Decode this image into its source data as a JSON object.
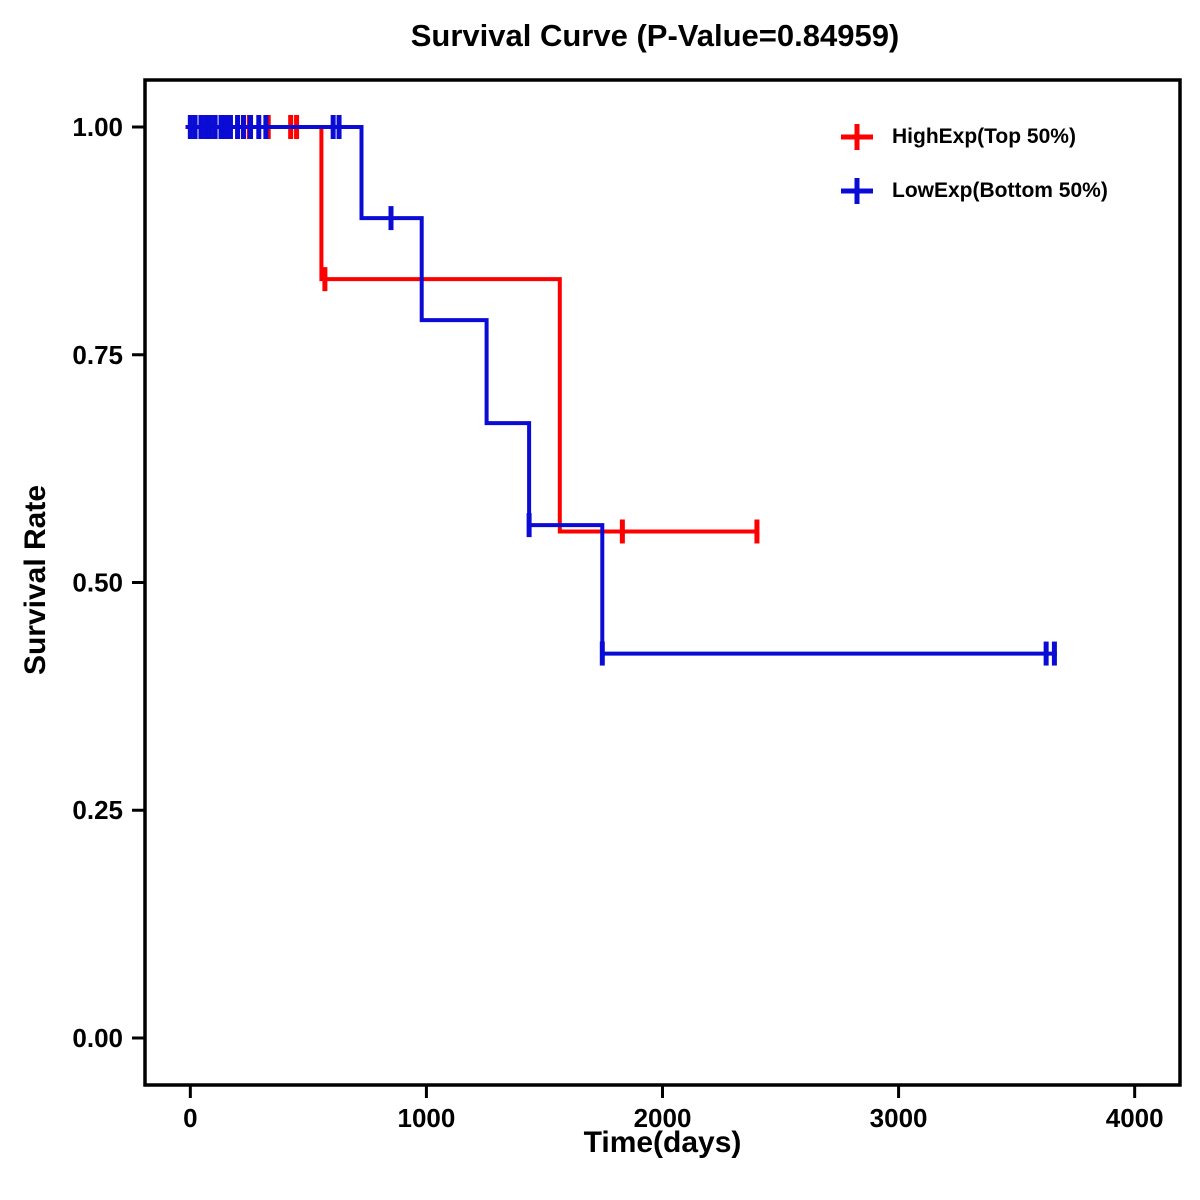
{
  "chart_data": {
    "type": "line",
    "subtype": "kaplan-meier-step",
    "title": "Survival Curve (P-Value=0.84959)",
    "p_value": "0.84959",
    "xlabel": "Time(days)",
    "ylabel": "Survival Rate",
    "xlim": [
      0,
      4000
    ],
    "ylim": [
      0,
      1
    ],
    "x_ticks": [
      0,
      1000,
      2000,
      3000,
      4000
    ],
    "x_tick_labels": [
      "0",
      "1000",
      "2000",
      "3000",
      "4000"
    ],
    "y_ticks": [
      0,
      0.25,
      0.5,
      0.75,
      1
    ],
    "y_tick_labels": [
      "0.00",
      "0.25",
      "0.50",
      "0.75",
      "1.00"
    ],
    "grid": false,
    "legend_position": "top-right",
    "series": [
      {
        "name": "HighExp(Top 50%)",
        "color": "#FF0000",
        "steps": [
          [
            -20,
            1.0
          ],
          [
            555,
            1.0
          ],
          [
            555,
            0.833
          ],
          [
            1565,
            0.833
          ],
          [
            1565,
            0.556
          ],
          [
            2400,
            0.556
          ]
        ],
        "censors": [
          [
            225,
            1.0
          ],
          [
            250,
            1.0
          ],
          [
            330,
            1.0
          ],
          [
            425,
            1.0
          ],
          [
            450,
            1.0
          ],
          [
            570,
            0.833
          ],
          [
            1830,
            0.556
          ],
          [
            2400,
            0.556
          ]
        ]
      },
      {
        "name": "LowExp(Bottom 50%)",
        "color": "#0B0BD6",
        "steps": [
          [
            -20,
            1.0
          ],
          [
            725,
            1.0
          ],
          [
            725,
            0.9
          ],
          [
            980,
            0.9
          ],
          [
            980,
            0.788
          ],
          [
            1255,
            0.788
          ],
          [
            1255,
            0.675
          ],
          [
            1435,
            0.675
          ],
          [
            1435,
            0.563
          ],
          [
            1745,
            0.563
          ],
          [
            1745,
            0.422
          ],
          [
            3670,
            0.422
          ]
        ],
        "censors": [
          [
            0,
            1.0
          ],
          [
            20,
            1.0
          ],
          [
            45,
            1.0
          ],
          [
            65,
            1.0
          ],
          [
            85,
            1.0
          ],
          [
            105,
            1.0
          ],
          [
            130,
            1.0
          ],
          [
            150,
            1.0
          ],
          [
            170,
            1.0
          ],
          [
            200,
            1.0
          ],
          [
            225,
            1.0
          ],
          [
            255,
            1.0
          ],
          [
            290,
            1.0
          ],
          [
            320,
            1.0
          ],
          [
            605,
            1.0
          ],
          [
            630,
            1.0
          ],
          [
            850,
            0.9
          ],
          [
            1435,
            0.563
          ],
          [
            1745,
            0.422
          ],
          [
            3625,
            0.422
          ],
          [
            3660,
            0.422
          ]
        ]
      }
    ]
  }
}
